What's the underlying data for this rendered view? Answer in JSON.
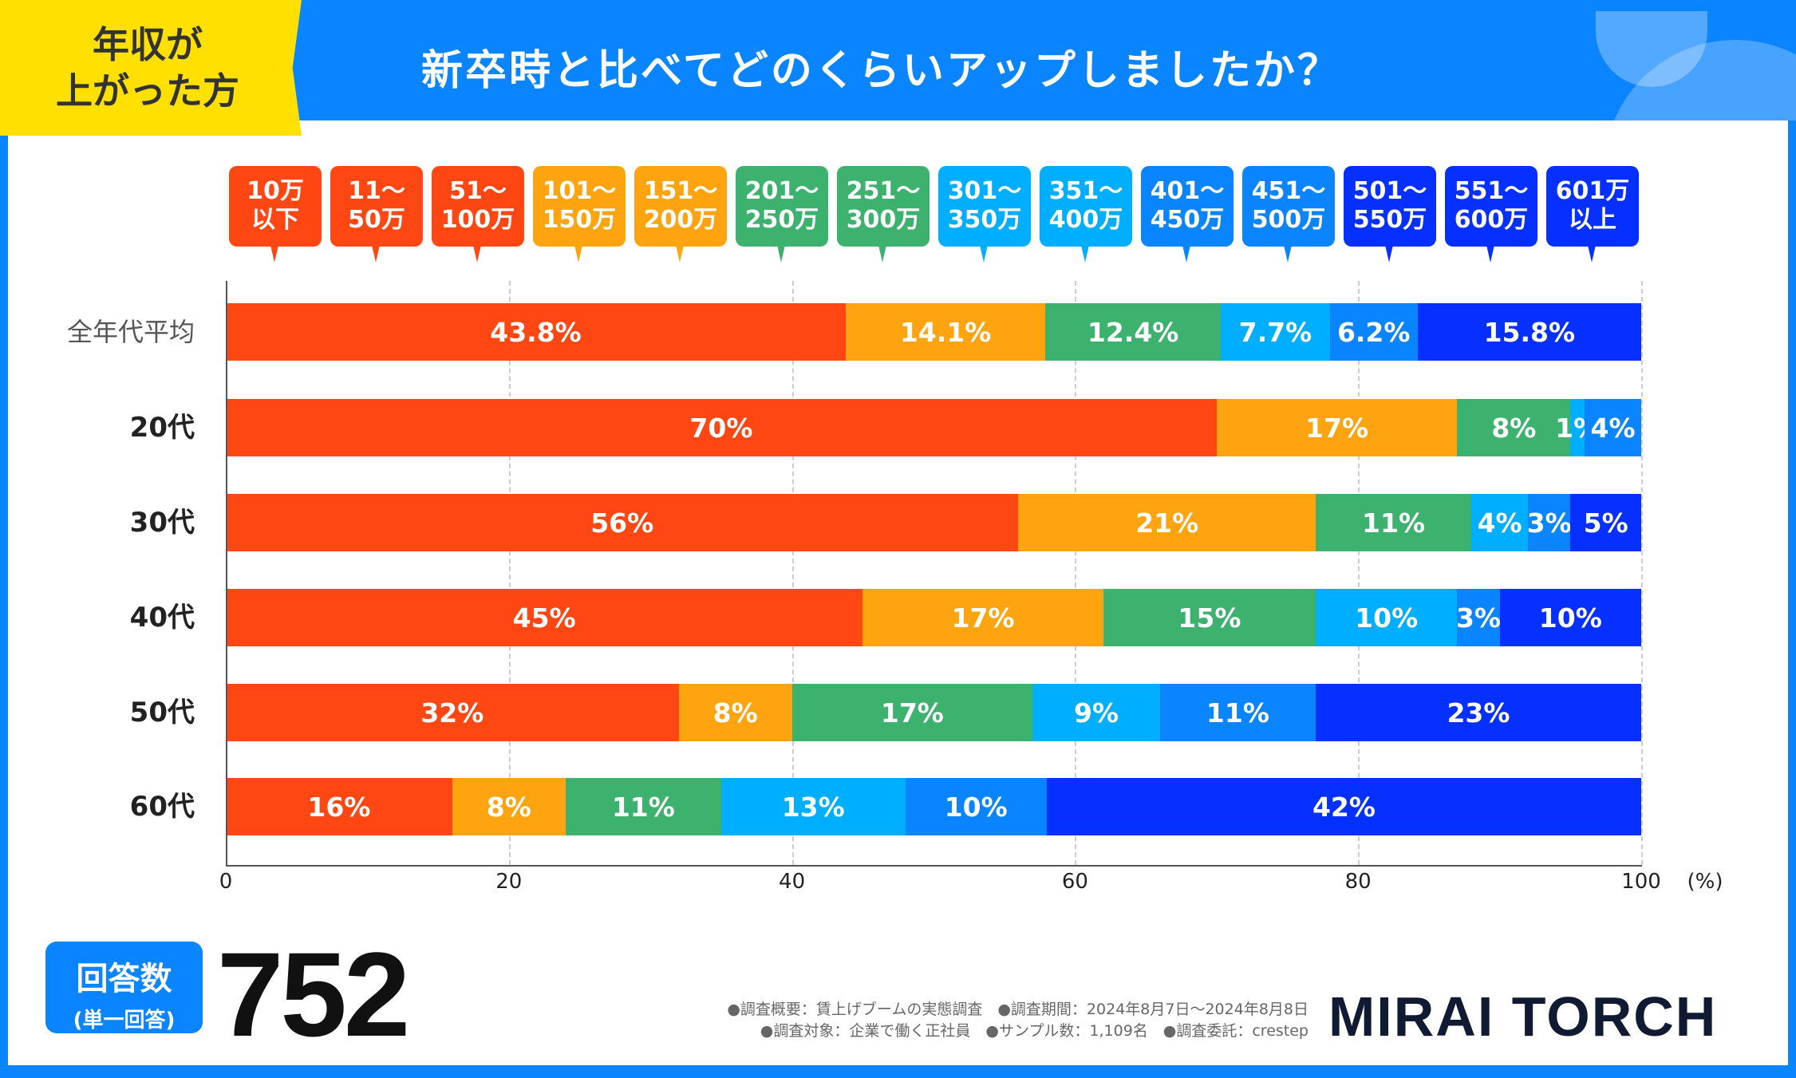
{
  "header": {
    "tag_line1": "年収が",
    "tag_line2": "上がった方",
    "title": "新卒時と比べてどのくらいアップしましたか？"
  },
  "legend": [
    {
      "line1": "10万",
      "line2": "以下",
      "color": "#FF4713"
    },
    {
      "line1": "11～",
      "line2": "50万",
      "color": "#FF4713"
    },
    {
      "line1": "51～",
      "line2": "100万",
      "color": "#FF4713"
    },
    {
      "line1": "101～",
      "line2": "150万",
      "color": "#FFA411"
    },
    {
      "line1": "151～",
      "line2": "200万",
      "color": "#FFA411"
    },
    {
      "line1": "201～",
      "line2": "250万",
      "color": "#3DB26E"
    },
    {
      "line1": "251～",
      "line2": "300万",
      "color": "#3DB26E"
    },
    {
      "line1": "301～",
      "line2": "350万",
      "color": "#00AEFF"
    },
    {
      "line1": "351～",
      "line2": "400万",
      "color": "#00AEFF"
    },
    {
      "line1": "401～",
      "line2": "450万",
      "color": "#0A84FF"
    },
    {
      "line1": "451～",
      "line2": "500万",
      "color": "#0A84FF"
    },
    {
      "line1": "501～",
      "line2": "550万",
      "color": "#0530FF"
    },
    {
      "line1": "551～",
      "line2": "600万",
      "color": "#0530FF"
    },
    {
      "line1": "601万",
      "line2": "以上",
      "color": "#0530FF"
    }
  ],
  "chart_data": {
    "type": "bar",
    "orientation": "horizontal-stacked-100",
    "categories": [
      "全年代平均",
      "20代",
      "30代",
      "40代",
      "50代",
      "60代"
    ],
    "segment_colors": [
      "#FF4713",
      "#FFA411",
      "#3DB26E",
      "#00AEFF",
      "#0A84FF",
      "#0530FF"
    ],
    "rows": [
      {
        "values": [
          43.8,
          14.1,
          12.4,
          7.7,
          6.2,
          15.8
        ],
        "labels": [
          "43.8%",
          "14.1%",
          "12.4%",
          "7.7%",
          "6.2%",
          "15.8%"
        ]
      },
      {
        "values": [
          70,
          17,
          8,
          1,
          4,
          0
        ],
        "labels": [
          "70%",
          "17%",
          "8%",
          "1%",
          "4%",
          ""
        ]
      },
      {
        "values": [
          56,
          21,
          11,
          4,
          3,
          5
        ],
        "labels": [
          "56%",
          "21%",
          "11%",
          "4%",
          "3%",
          "5%"
        ]
      },
      {
        "values": [
          45,
          17,
          15,
          10,
          3,
          10
        ],
        "labels": [
          "45%",
          "17%",
          "15%",
          "10%",
          "3%",
          "10%"
        ]
      },
      {
        "values": [
          32,
          8,
          17,
          9,
          11,
          23
        ],
        "labels": [
          "32%",
          "8%",
          "17%",
          "9%",
          "11%",
          "23%"
        ]
      },
      {
        "values": [
          16,
          8,
          11,
          13,
          10,
          42
        ],
        "labels": [
          "16%",
          "8%",
          "11%",
          "13%",
          "10%",
          "42%"
        ]
      }
    ],
    "xlim": [
      0,
      100
    ],
    "xticks": [
      "0",
      "20",
      "40",
      "60",
      "80",
      "100"
    ],
    "xunit": "(%)",
    "grid": true
  },
  "footer": {
    "badge_line1": "回答数",
    "badge_line2": "(単一回答)",
    "count": "752",
    "note1": "●調査概要：賃上げブームの実態調査　●調査期間：2024年8月7日～2024年8月8日",
    "note2": "●調査対象：企業で働く正社員　●サンプル数：1,109名　●調査委託：crestep",
    "logo": "MIRAI TORCH"
  }
}
